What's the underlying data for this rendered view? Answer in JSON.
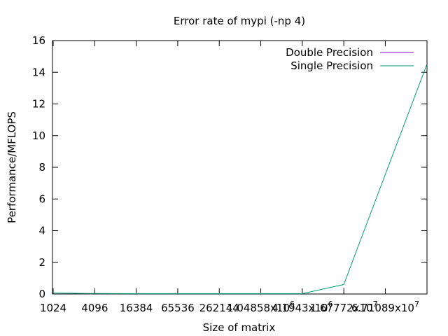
{
  "chart_data": {
    "type": "line",
    "title": "Error rate of mypi (-np 4)",
    "xlabel": "Size of matrix",
    "ylabel": "Performance/MFLOPS",
    "xscale": "log2",
    "xlim": [
      1000,
      270000000
    ],
    "ylim": [
      0,
      16
    ],
    "grid": false,
    "legend_position": "top-right",
    "x_ticks": [
      1024,
      4096,
      16384,
      65536,
      262144,
      1048576,
      4194304,
      16777216,
      67108864
    ],
    "x_tick_labels": [
      "1024",
      "4096",
      "16384",
      "65536",
      "262144",
      "1.04858x10^6",
      "4.1943x10^6",
      "1.67772x10^7",
      "6.71089x10^7"
    ],
    "y_ticks": [
      0,
      2,
      4,
      6,
      8,
      10,
      12,
      14,
      16
    ],
    "series": [
      {
        "name": "Double Precision",
        "color": "#9400d3",
        "x": [],
        "y": []
      },
      {
        "name": "Single Precision",
        "color": "#009e73",
        "x": [
          1024,
          4096,
          16384,
          65536,
          262144,
          1048576,
          4194304,
          16777216,
          268435456
        ],
        "y": [
          0.06,
          0.03,
          0.02,
          0.02,
          0.02,
          0.02,
          0.02,
          0.6,
          14.5
        ]
      }
    ]
  }
}
